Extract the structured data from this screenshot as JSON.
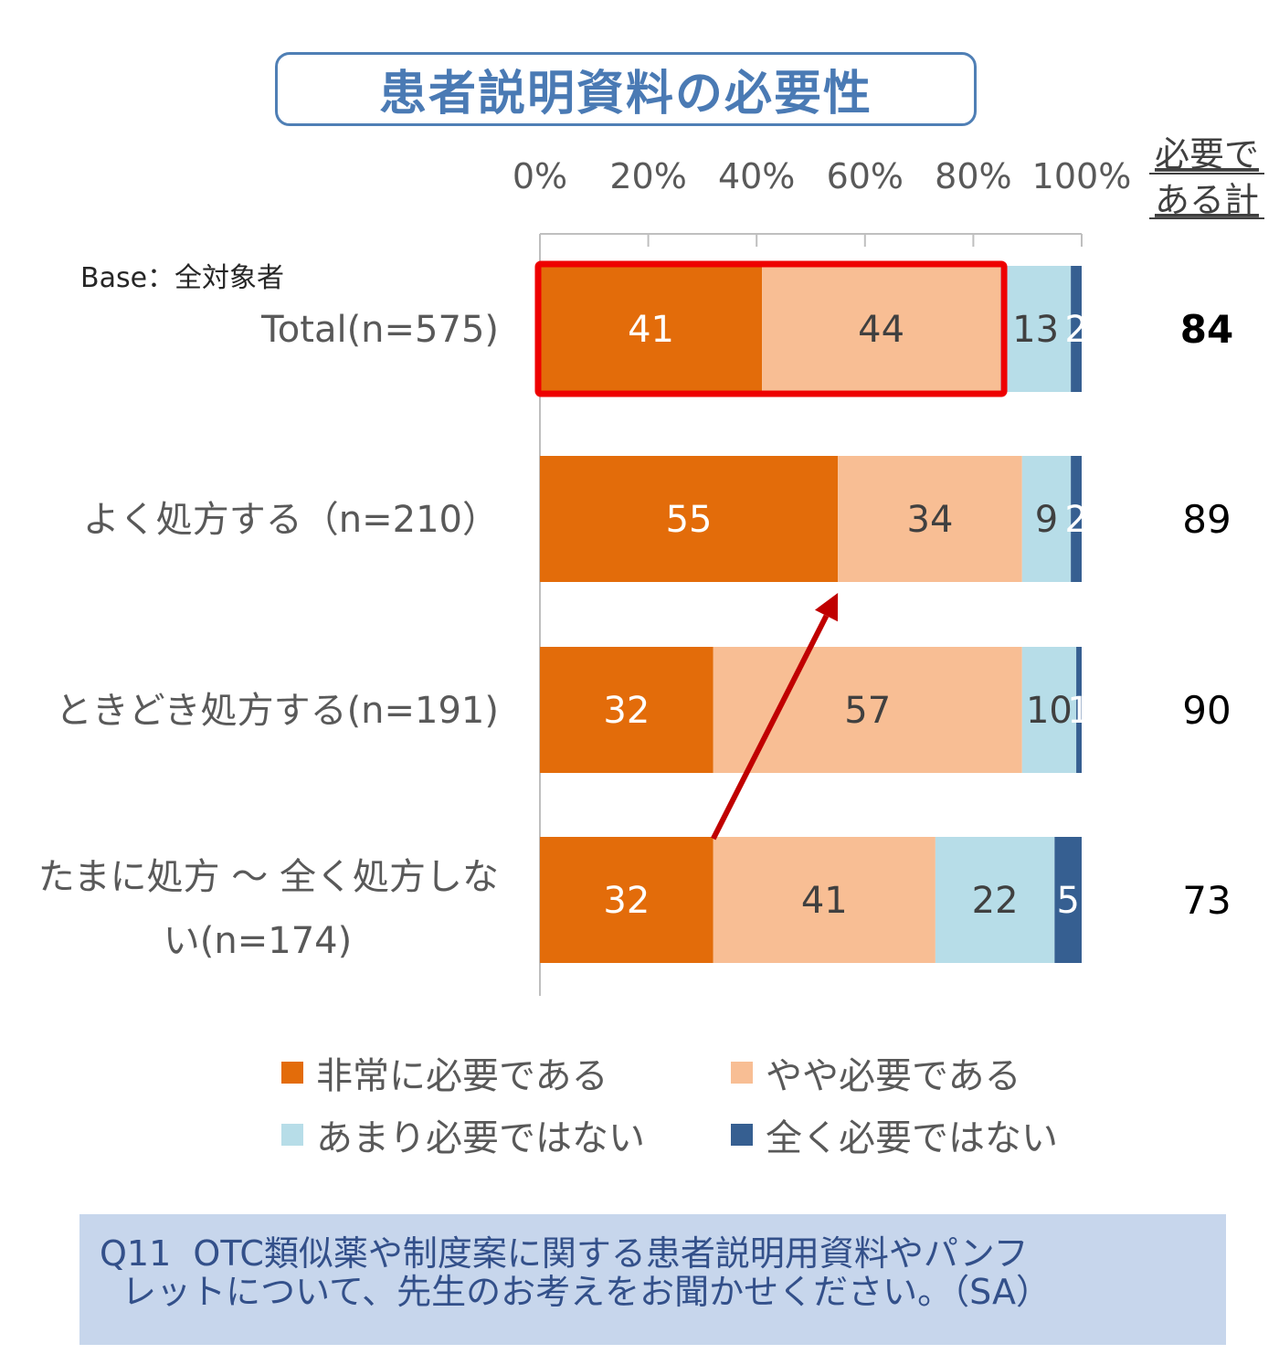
{
  "title": "患者説明資料の必要性",
  "base_note": "Base：全対象者",
  "side_header": [
    "必要で",
    "ある計"
  ],
  "question": "Q11  OTC類似薬や制度案に関する患者説明用資料やパンフ\n  レットについて、先生のお考えをお聞かせください。（SA）",
  "colors": {
    "very_necessary": "#e36c0a",
    "somewhat_necessary": "#f8be94",
    "not_very_necessary": "#b7dde8",
    "not_at_all_necessary": "#365f91",
    "highlight": "#ee0000",
    "arrow": "#c00000"
  },
  "chart_data": {
    "type": "bar",
    "orientation": "horizontal",
    "stacked": true,
    "percent_stacked": true,
    "xlim": [
      0,
      100
    ],
    "x_ticks": [
      "0%",
      "20%",
      "40%",
      "60%",
      "80%",
      "100%"
    ],
    "categories": [
      "Total(n=575)",
      "よく処方する（n=210）",
      "ときどき処方する(n=191)",
      "たまに処方 ～ 全く処方しない(n=174)"
    ],
    "category_lines": [
      [
        "Total(n=575)"
      ],
      [
        "よく処方する（n=210）"
      ],
      [
        "ときどき処方する(n=191)"
      ],
      [
        "たまに処方 ～ 全く処方しな",
        "い(n=174)"
      ]
    ],
    "series": [
      {
        "name": "非常に必要である",
        "values": [
          41,
          55,
          32,
          32
        ]
      },
      {
        "name": "やや必要である",
        "values": [
          44,
          34,
          57,
          41
        ]
      },
      {
        "name": "あまり必要ではない",
        "values": [
          13,
          9,
          10,
          22
        ]
      },
      {
        "name": "全く必要ではない",
        "values": [
          2,
          2,
          1,
          5
        ]
      }
    ],
    "necessary_total": [
      84,
      89,
      90,
      73
    ],
    "legend_position": "bottom",
    "grid": false,
    "highlight": "Total(n=575) 非常に必要である + やや必要である",
    "arrow": {
      "from": "たまに処方 ～ 全く処方しない(n=174) 非常に必要である",
      "to": "よく処方する（n=210） 非常に必要である"
    }
  }
}
